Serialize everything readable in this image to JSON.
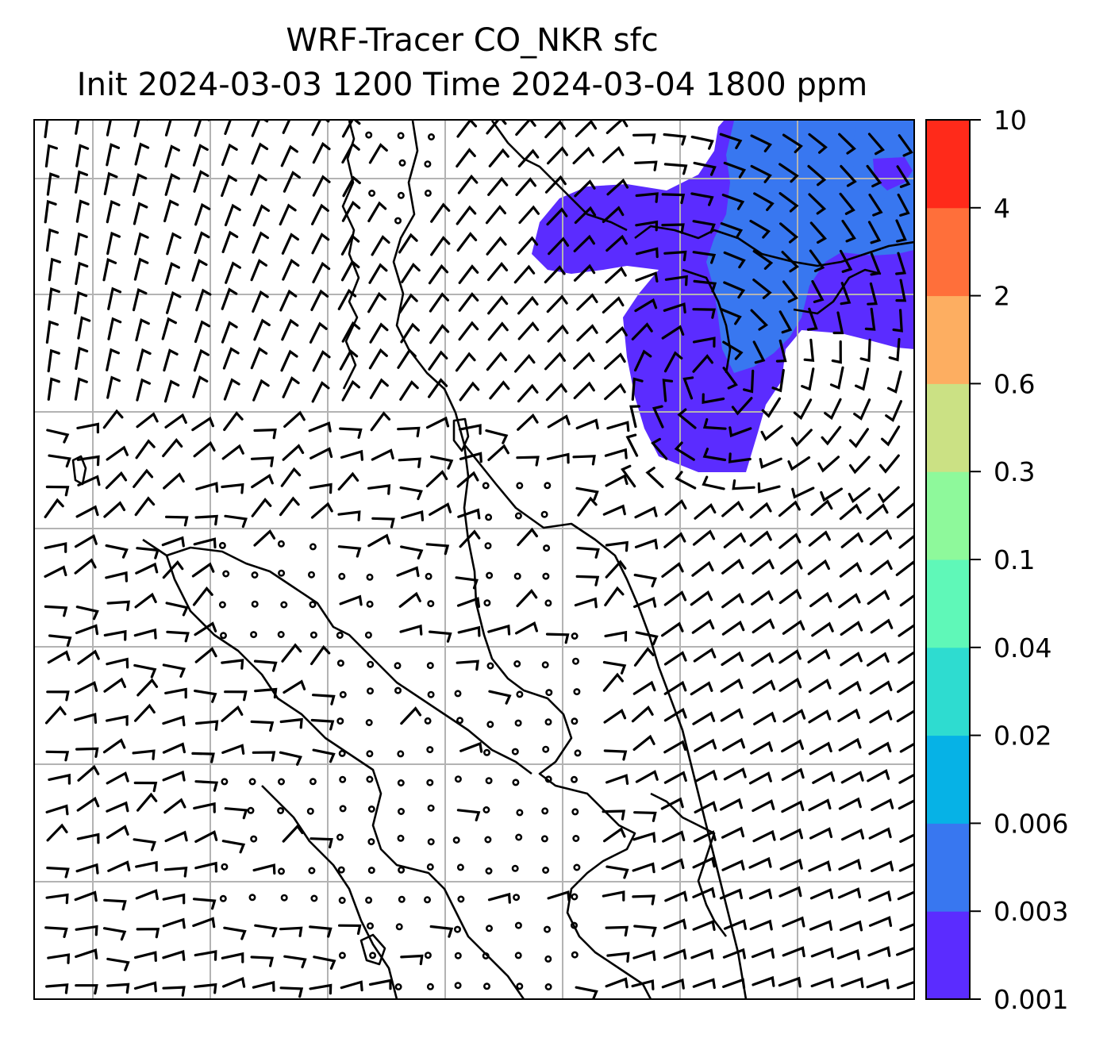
{
  "title": {
    "line1": "WRF-Tracer CO_NKR sfc",
    "line2": "Init 2024-03-03 1200 Time 2024-03-04 1800 ppm"
  },
  "colorbar": {
    "levels": [
      "0.001",
      "0.003",
      "0.006",
      "0.02",
      "0.04",
      "0.1",
      "0.3",
      "0.6",
      "2",
      "4",
      "10"
    ],
    "colors": [
      "#5b2cff",
      "#3877f0",
      "#06b2e6",
      "#2edcd0",
      "#5ff8b8",
      "#8ef99b",
      "#cbe184",
      "#fdae61",
      "#ff6f3a",
      "#ff2a1a"
    ]
  },
  "map": {
    "plume_colors": {
      "low": "#5b2cff",
      "mid": "#3877f0"
    },
    "grid": "on",
    "coastline_color": "#000000",
    "wind_barb_color": "#000000"
  }
}
